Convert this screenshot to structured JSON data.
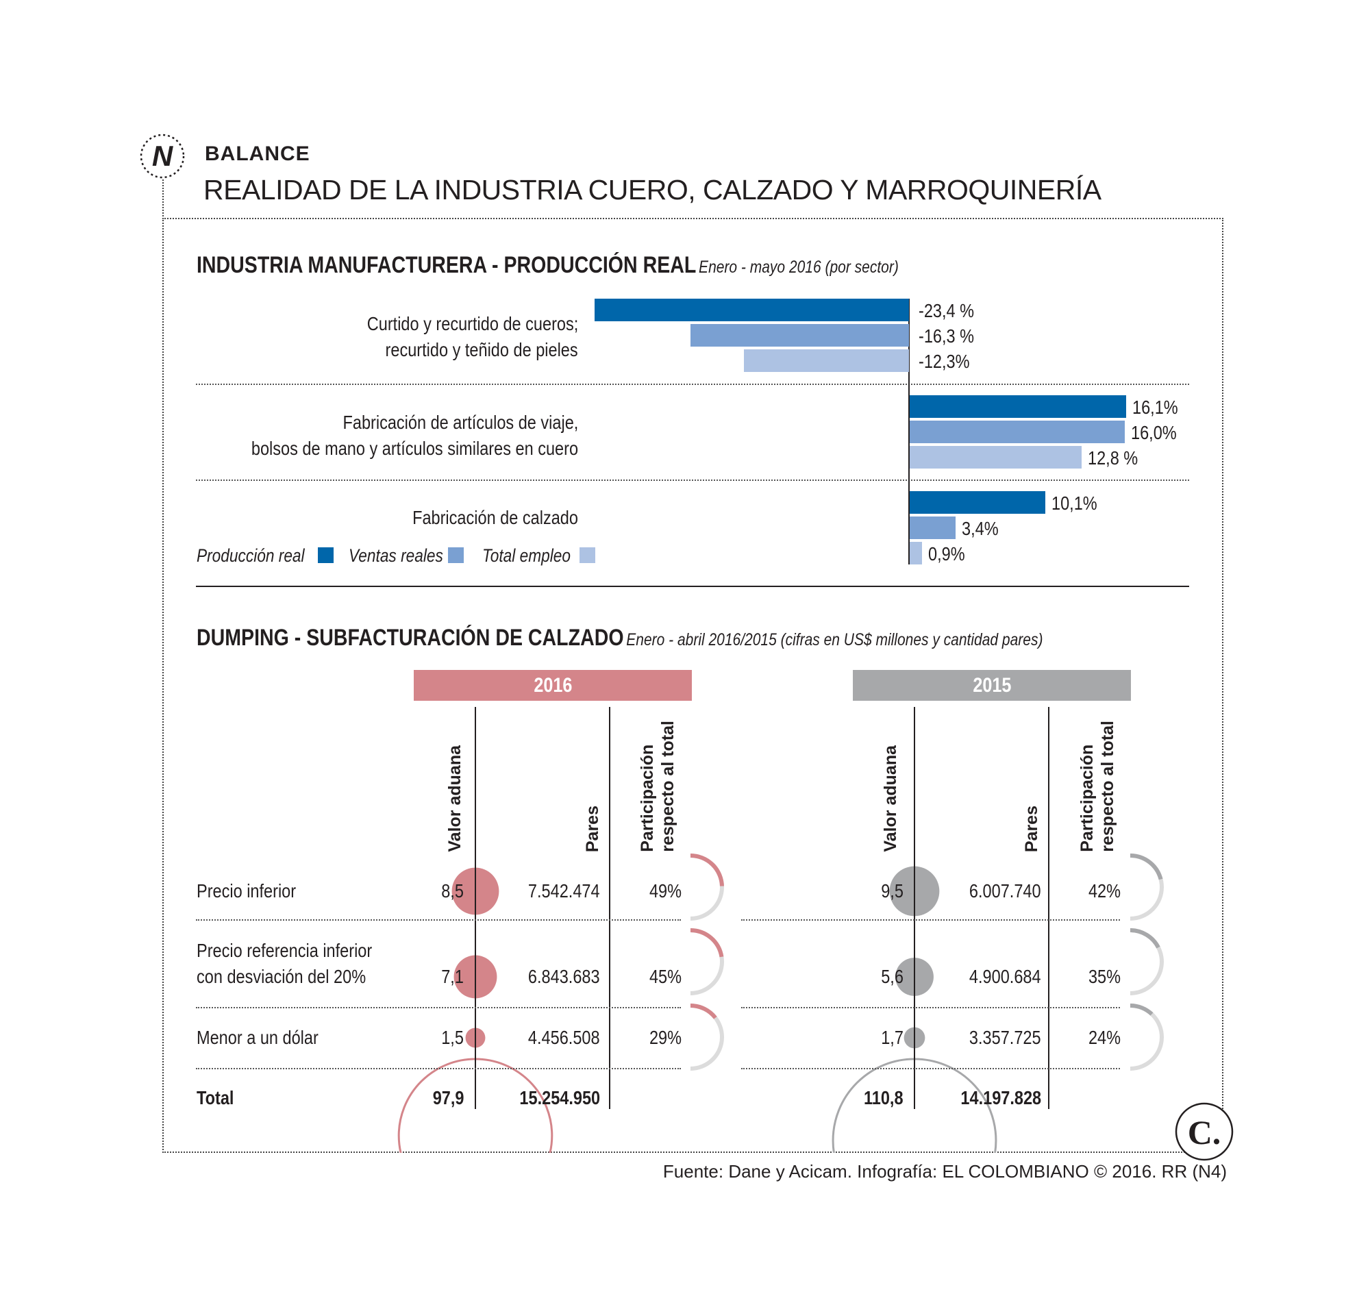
{
  "header": {
    "kicker": "BALANCE",
    "title": "REALIDAD DE LA INDUSTRIA CUERO, CALZADO Y MARROQUINERÍA",
    "logo_letter": "N"
  },
  "colors": {
    "produccion": "#0066aa",
    "ventas": "#7aa0d2",
    "empleo": "#adc2e3",
    "y2016": "#d4858a",
    "y2015": "#a7a8aa",
    "track": "#dcdcdc"
  },
  "chart_data": [
    {
      "type": "bar",
      "title": "INDUSTRIA MANUFACTURERA - PRODUCCIÓN REAL",
      "subtitle": "Enero - mayo 2016 (por sector)",
      "orientation": "horizontal",
      "categories": [
        [
          "Curtido y recurtido de cueros;",
          "recurtido y teñido de pieles"
        ],
        [
          "Fabricación de artículos de viaje,",
          "bolsos de mano y artículos similares en cuero"
        ],
        [
          "Fabricación de calzado"
        ]
      ],
      "series": [
        {
          "name": "Producción real",
          "values": [
            -23.4,
            16.1,
            10.1
          ],
          "labels": [
            "-23,4 %",
            "16,1%",
            "10,1%"
          ]
        },
        {
          "name": "Ventas reales",
          "values": [
            -16.3,
            16.0,
            3.4
          ],
          "labels": [
            "-16,3 %",
            "16,0%",
            "3,4%"
          ]
        },
        {
          "name": "Total empleo",
          "values": [
            -12.3,
            12.8,
            0.9
          ],
          "labels": [
            "-12,3%",
            "12,8 %",
            "0,9%"
          ]
        }
      ],
      "legend": [
        "Producción real",
        "Ventas reales",
        "Total empleo"
      ],
      "xlim": [
        -23.4,
        16.1
      ]
    },
    {
      "type": "table",
      "title": "DUMPING - SUBFACTURACIÓN DE CALZADO",
      "subtitle": "Enero - abril 2016/2015 (cifras en US$ millones y cantidad pares)",
      "columns": [
        "Valor aduana",
        "Pares",
        [
          "Participación",
          "respecto al total"
        ]
      ],
      "years": [
        {
          "year": "2016",
          "rows": [
            {
              "valor": 8.5,
              "valor_label": "8,5",
              "pares": "7.542.474",
              "pct": 49,
              "pct_label": "49%"
            },
            {
              "valor": 7.1,
              "valor_label": "7,1",
              "pares": "6.843.683",
              "pct": 45,
              "pct_label": "45%"
            },
            {
              "valor": 1.5,
              "valor_label": "1,5",
              "pares": "4.456.508",
              "pct": 29,
              "pct_label": "29%"
            }
          ],
          "total": {
            "valor": 97.9,
            "valor_label": "97,9",
            "pares": "15.254.950"
          }
        },
        {
          "year": "2015",
          "rows": [
            {
              "valor": 9.5,
              "valor_label": "9,5",
              "pares": "6.007.740",
              "pct": 42,
              "pct_label": "42%"
            },
            {
              "valor": 5.6,
              "valor_label": "5,6",
              "pares": "4.900.684",
              "pct": 35,
              "pct_label": "35%"
            },
            {
              "valor": 1.7,
              "valor_label": "1,7",
              "pares": "3.357.725",
              "pct": 24,
              "pct_label": "24%"
            }
          ],
          "total": {
            "valor": 110.8,
            "valor_label": "110,8",
            "pares": "14.197.828"
          }
        }
      ],
      "row_labels": [
        [
          "Precio inferior"
        ],
        [
          "Precio referencia inferior",
          "con desviación del 20%"
        ],
        [
          "Menor a un dólar"
        ]
      ],
      "total_label": "Total"
    }
  ],
  "footer": {
    "source": "Fuente: Dane y Acicam. Infografía: EL COLOMBIANO © 2016. RR (N4)",
    "logo_letter": "C."
  }
}
